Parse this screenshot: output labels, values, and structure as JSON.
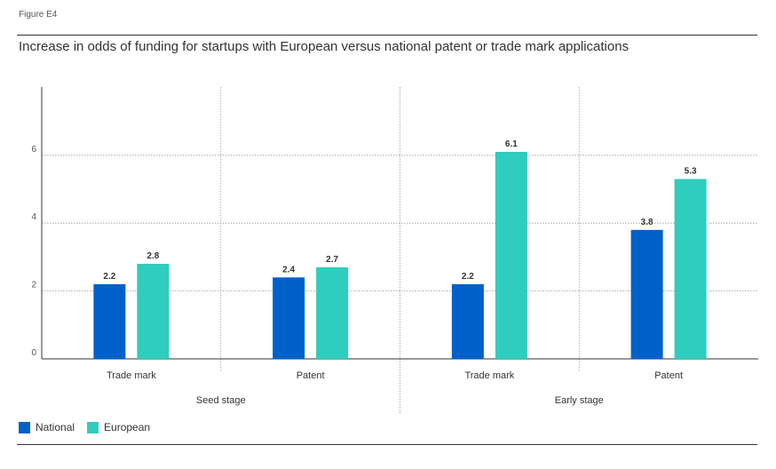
{
  "figure_label": "Figure E4",
  "title": "Increase in odds of funding for startups with European versus national patent or trade mark applications",
  "colors": {
    "national": "#0060c9",
    "european": "#2ecdbd"
  },
  "chart_data": {
    "type": "bar",
    "categories": [
      "Trade mark",
      "Patent",
      "Trade mark",
      "Patent"
    ],
    "groups": [
      {
        "label": "Seed stage",
        "categories": [
          "Trade mark",
          "Patent"
        ]
      },
      {
        "label": "Early stage",
        "categories": [
          "Trade mark",
          "Patent"
        ]
      }
    ],
    "series": [
      {
        "name": "National",
        "values": [
          2.2,
          2.4,
          2.2,
          3.8
        ]
      },
      {
        "name": "European",
        "values": [
          2.8,
          2.7,
          6.1,
          5.3
        ]
      }
    ],
    "data_labels": [
      [
        "2.2",
        "2.4",
        "2.2",
        "3.8"
      ],
      [
        "2.8",
        "2.7",
        "6.1",
        "5.3"
      ]
    ],
    "yticks": [
      "0",
      "2",
      "4",
      "6"
    ],
    "ylim": [
      0,
      8
    ],
    "grid": true,
    "legend_position": "bottom-left"
  }
}
